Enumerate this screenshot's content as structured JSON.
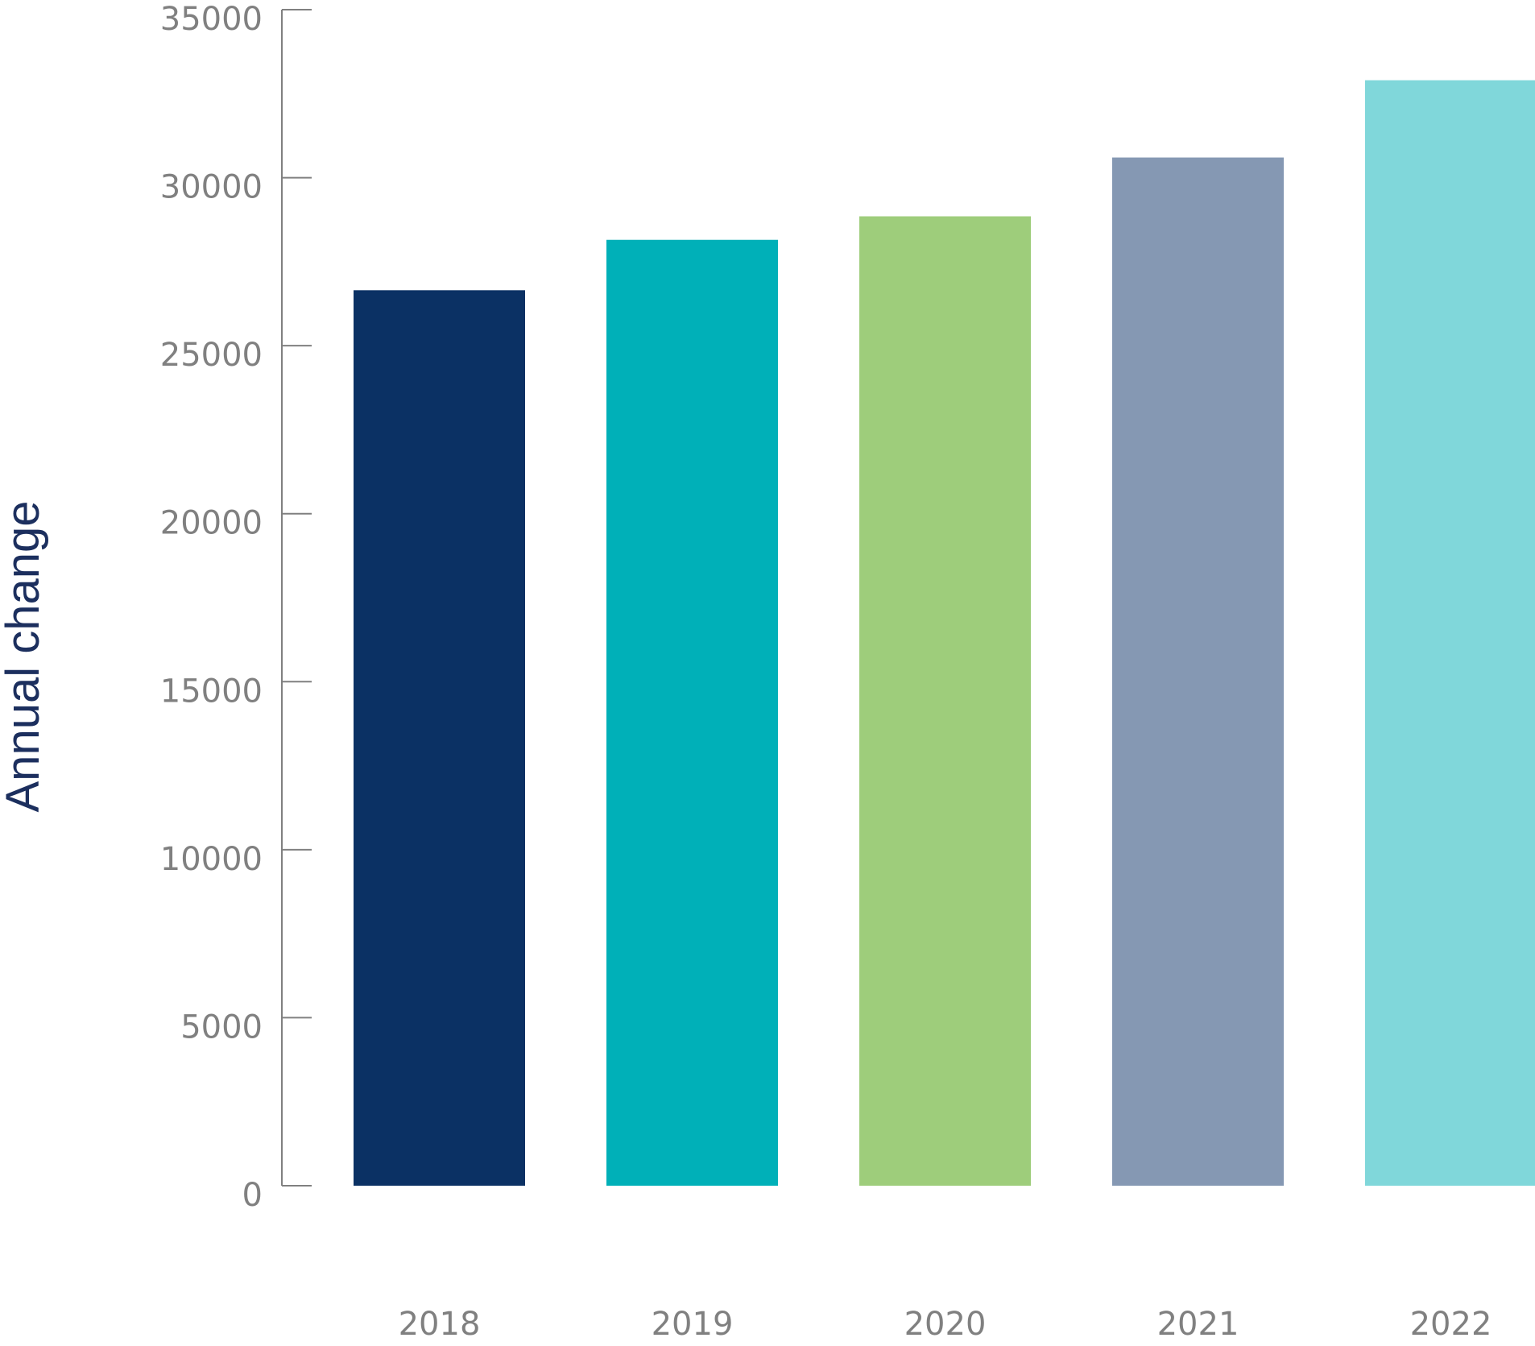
{
  "chart_data": {
    "type": "bar",
    "title": "",
    "xlabel": "",
    "ylabel": "Annual change",
    "categories": [
      "2018",
      "2019",
      "2020",
      "2021",
      "2022"
    ],
    "values": [
      26650,
      28150,
      28850,
      30600,
      32900
    ],
    "colors": [
      "#0b3164",
      "#00b0b8",
      "#9ecd7b",
      "#8598b3",
      "#80d7da"
    ],
    "ylim": [
      0,
      35000
    ],
    "yticks": [
      0,
      5000,
      10000,
      15000,
      20000,
      25000,
      30000,
      35000
    ],
    "ytick_labels": [
      "0",
      "5000",
      "10000",
      "15000",
      "20000",
      "25000",
      "30000",
      "35000"
    ],
    "grid": false,
    "legend": "none",
    "axis_color": "#808080",
    "tick_label_color": "#808080",
    "ylabel_color": "#1c2f5e"
  }
}
